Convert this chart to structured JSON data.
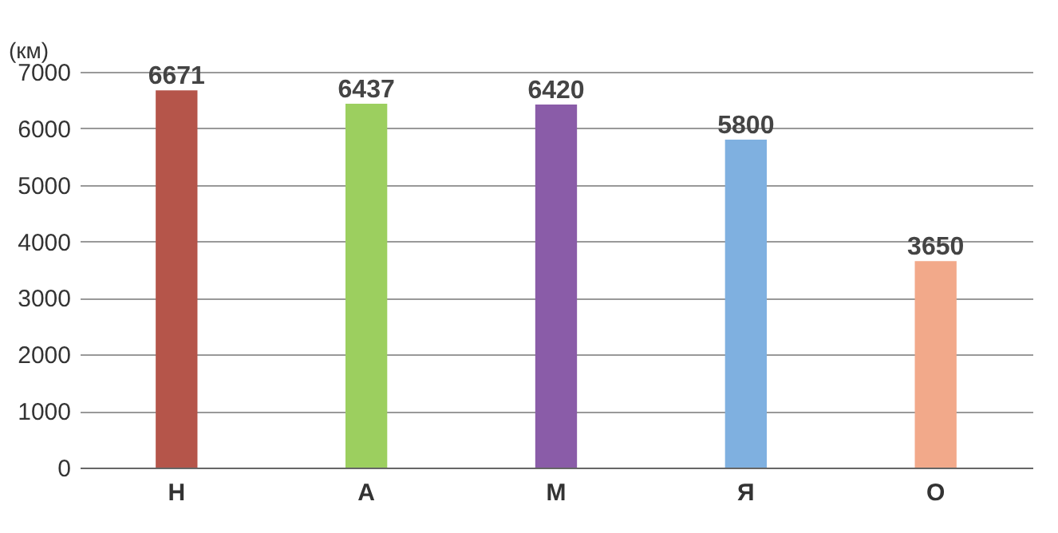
{
  "chart_data": {
    "type": "bar",
    "ylabel": "(км)",
    "categories": [
      "Н",
      "А",
      "М",
      "Я",
      "О"
    ],
    "values": [
      6671,
      6437,
      6420,
      5800,
      3650
    ],
    "colors": [
      "#b5554a",
      "#9ccf5f",
      "#8a5ca8",
      "#7fb0e0",
      "#f2a98a"
    ],
    "ylim": [
      0,
      7000
    ],
    "yticks": [
      0,
      1000,
      2000,
      3000,
      4000,
      5000,
      6000,
      7000
    ],
    "grid": "y",
    "data_labels": true
  }
}
